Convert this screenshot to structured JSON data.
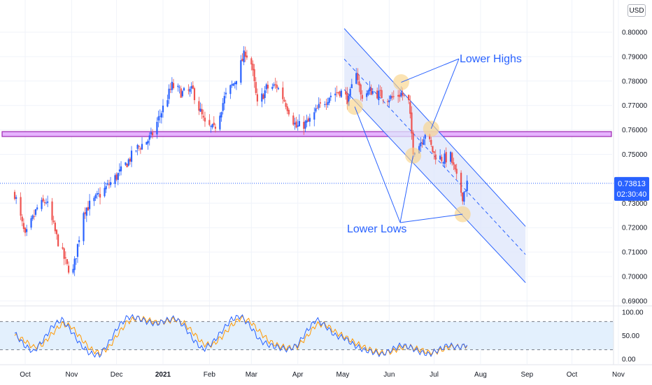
{
  "currency_badge": "USD",
  "colors": {
    "bull": "#2962ff",
    "bear": "#ef5350",
    "channel_fill": "#dde6fb",
    "channel_line": "#2962ff",
    "resistance_zone": "#e6b3ff",
    "resistance_border": "#9c27b0",
    "highlight": "#f9d48a",
    "rsi_k": "#2962ff",
    "rsi_d": "#ff9800",
    "rsi_band": "#e3f0fd",
    "grid": "#f0f3fa",
    "price_tag": "#2962ff"
  },
  "chart_data": [
    {
      "type": "candlestick",
      "title": "",
      "xlabel": "",
      "ylabel": "",
      "ylim": [
        0.688,
        0.805
      ],
      "grid": true,
      "y_ticks": [
        "0.80000",
        "0.79000",
        "0.78000",
        "0.77000",
        "0.76000",
        "0.75000",
        "0.73000",
        "0.72000",
        "0.71000",
        "0.70000",
        "0.69000"
      ],
      "x_ticks": [
        "Oct",
        "Nov",
        "Dec",
        "2021",
        "Feb",
        "Mar",
        "Apr",
        "May",
        "Jun",
        "Jul",
        "Aug",
        "Sep",
        "Oct",
        "Nov"
      ],
      "current_price": "0.73813",
      "countdown": "02:30:40",
      "anchors": [
        [
          "2020-09-24",
          0.734
        ],
        [
          "2020-10-01",
          0.716
        ],
        [
          "2020-10-09",
          0.728
        ],
        [
          "2020-10-15",
          0.731
        ],
        [
          "2020-10-22",
          0.716
        ],
        [
          "2020-10-29",
          0.704
        ],
        [
          "2020-11-02",
          0.702
        ],
        [
          "2020-11-09",
          0.727
        ],
        [
          "2020-11-16",
          0.731
        ],
        [
          "2020-11-25",
          0.737
        ],
        [
          "2020-12-04",
          0.743
        ],
        [
          "2020-12-14",
          0.752
        ],
        [
          "2020-12-24",
          0.757
        ],
        [
          "2021-01-01",
          0.769
        ],
        [
          "2021-01-07",
          0.778
        ],
        [
          "2021-01-14",
          0.775
        ],
        [
          "2021-01-21",
          0.776
        ],
        [
          "2021-01-29",
          0.762
        ],
        [
          "2021-02-04",
          0.76
        ],
        [
          "2021-02-11",
          0.773
        ],
        [
          "2021-02-18",
          0.78
        ],
        [
          "2021-02-25",
          0.792
        ],
        [
          "2021-03-01",
          0.787
        ],
        [
          "2021-03-05",
          0.77
        ],
        [
          "2021-03-11",
          0.777
        ],
        [
          "2021-03-18",
          0.778
        ],
        [
          "2021-03-24",
          0.771
        ],
        [
          "2021-03-31",
          0.761
        ],
        [
          "2021-04-08",
          0.763
        ],
        [
          "2021-04-15",
          0.769
        ],
        [
          "2021-04-22",
          0.774
        ],
        [
          "2021-04-29",
          0.776
        ],
        [
          "2021-05-05",
          0.772
        ],
        [
          "2021-05-10",
          0.785
        ],
        [
          "2021-05-13",
          0.774
        ],
        [
          "2021-05-20",
          0.776
        ],
        [
          "2021-05-27",
          0.774
        ],
        [
          "2021-06-03",
          0.773
        ],
        [
          "2021-06-09",
          0.775
        ],
        [
          "2021-06-14",
          0.771
        ],
        [
          "2021-06-17",
          0.752
        ],
        [
          "2021-06-21",
          0.754
        ],
        [
          "2021-06-25",
          0.759
        ],
        [
          "2021-07-01",
          0.75
        ],
        [
          "2021-07-07",
          0.748
        ],
        [
          "2021-07-12",
          0.749
        ],
        [
          "2021-07-16",
          0.74
        ],
        [
          "2021-07-20",
          0.733
        ],
        [
          "2021-07-23",
          0.738
        ]
      ]
    },
    {
      "type": "line",
      "title": "",
      "ylim": [
        0,
        100
      ],
      "y_ticks": [
        "100.00",
        "50.00",
        "0.00"
      ],
      "band": [
        20,
        80
      ],
      "series": [
        {
          "name": "",
          "values": [
            55,
            30,
            15,
            40,
            70,
            85,
            60,
            30,
            12,
            8,
            35,
            70,
            90,
            88,
            80,
            75,
            82,
            88,
            70,
            40,
            20,
            35,
            60,
            85,
            92,
            70,
            40,
            30,
            25,
            20,
            30,
            60,
            85,
            70,
            50,
            45,
            30,
            20,
            15,
            10,
            20,
            30,
            25,
            15,
            10,
            20,
            30,
            25,
            30
          ]
        },
        {
          "name": "",
          "values": [
            50,
            40,
            25,
            32,
            55,
            75,
            70,
            45,
            22,
            12,
            25,
            55,
            80,
            88,
            84,
            78,
            80,
            85,
            76,
            55,
            32,
            30,
            48,
            72,
            88,
            80,
            58,
            38,
            28,
            24,
            27,
            48,
            74,
            74,
            58,
            48,
            36,
            26,
            18,
            13,
            16,
            25,
            26,
            20,
            14,
            17,
            26,
            26,
            28
          ]
        }
      ]
    }
  ],
  "annotations": {
    "lower_highs": "Lower Highs",
    "lower_lows": "Lower Lows"
  }
}
